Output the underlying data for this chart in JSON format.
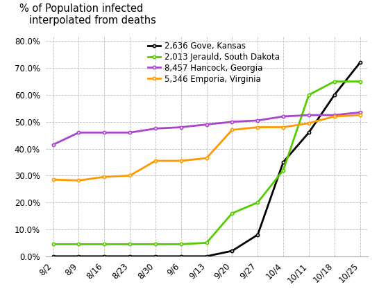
{
  "title": "% of Population infected\n   interpolated from deaths",
  "x_labels": [
    "8/2",
    "8/9",
    "8/16",
    "8/23",
    "8/30",
    "9/6",
    "9/13",
    "9/20",
    "9/27",
    "10/4",
    "10/11",
    "10/18",
    "10/25"
  ],
  "series": [
    {
      "label": "2,636 Gove, Kansas",
      "color": "#000000",
      "values": [
        0.0,
        0.0,
        0.0,
        0.0,
        0.0,
        0.0,
        0.0,
        0.02,
        0.08,
        0.35,
        0.46,
        0.6,
        0.72
      ]
    },
    {
      "label": "2,013 Jerauld, South Dakota",
      "color": "#55cc00",
      "values": [
        0.045,
        0.045,
        0.045,
        0.045,
        0.045,
        0.045,
        0.05,
        0.16,
        0.2,
        0.32,
        0.6,
        0.65,
        0.65
      ]
    },
    {
      "label": "8,457 Hancock, Georgia",
      "color": "#aa44cc",
      "values": [
        0.415,
        0.46,
        0.46,
        0.46,
        0.475,
        0.48,
        0.49,
        0.5,
        0.505,
        0.52,
        0.525,
        0.525,
        0.535
      ]
    },
    {
      "label": "5,346 Emporia, Virginia",
      "color": "#ff9900",
      "values": [
        0.285,
        0.282,
        0.295,
        0.3,
        0.355,
        0.355,
        0.365,
        0.47,
        0.48,
        0.48,
        0.495,
        0.52,
        0.525
      ]
    }
  ],
  "ylim": [
    0.0,
    0.82
  ],
  "yticks": [
    0.0,
    0.1,
    0.2,
    0.3,
    0.4,
    0.5,
    0.6,
    0.7,
    0.8
  ],
  "background_color": "#ffffff",
  "grid_color": "#bbbbbb",
  "linewidth": 2.0,
  "title_fontsize": 10.5,
  "tick_fontsize": 8.5,
  "legend_fontsize": 8.5
}
